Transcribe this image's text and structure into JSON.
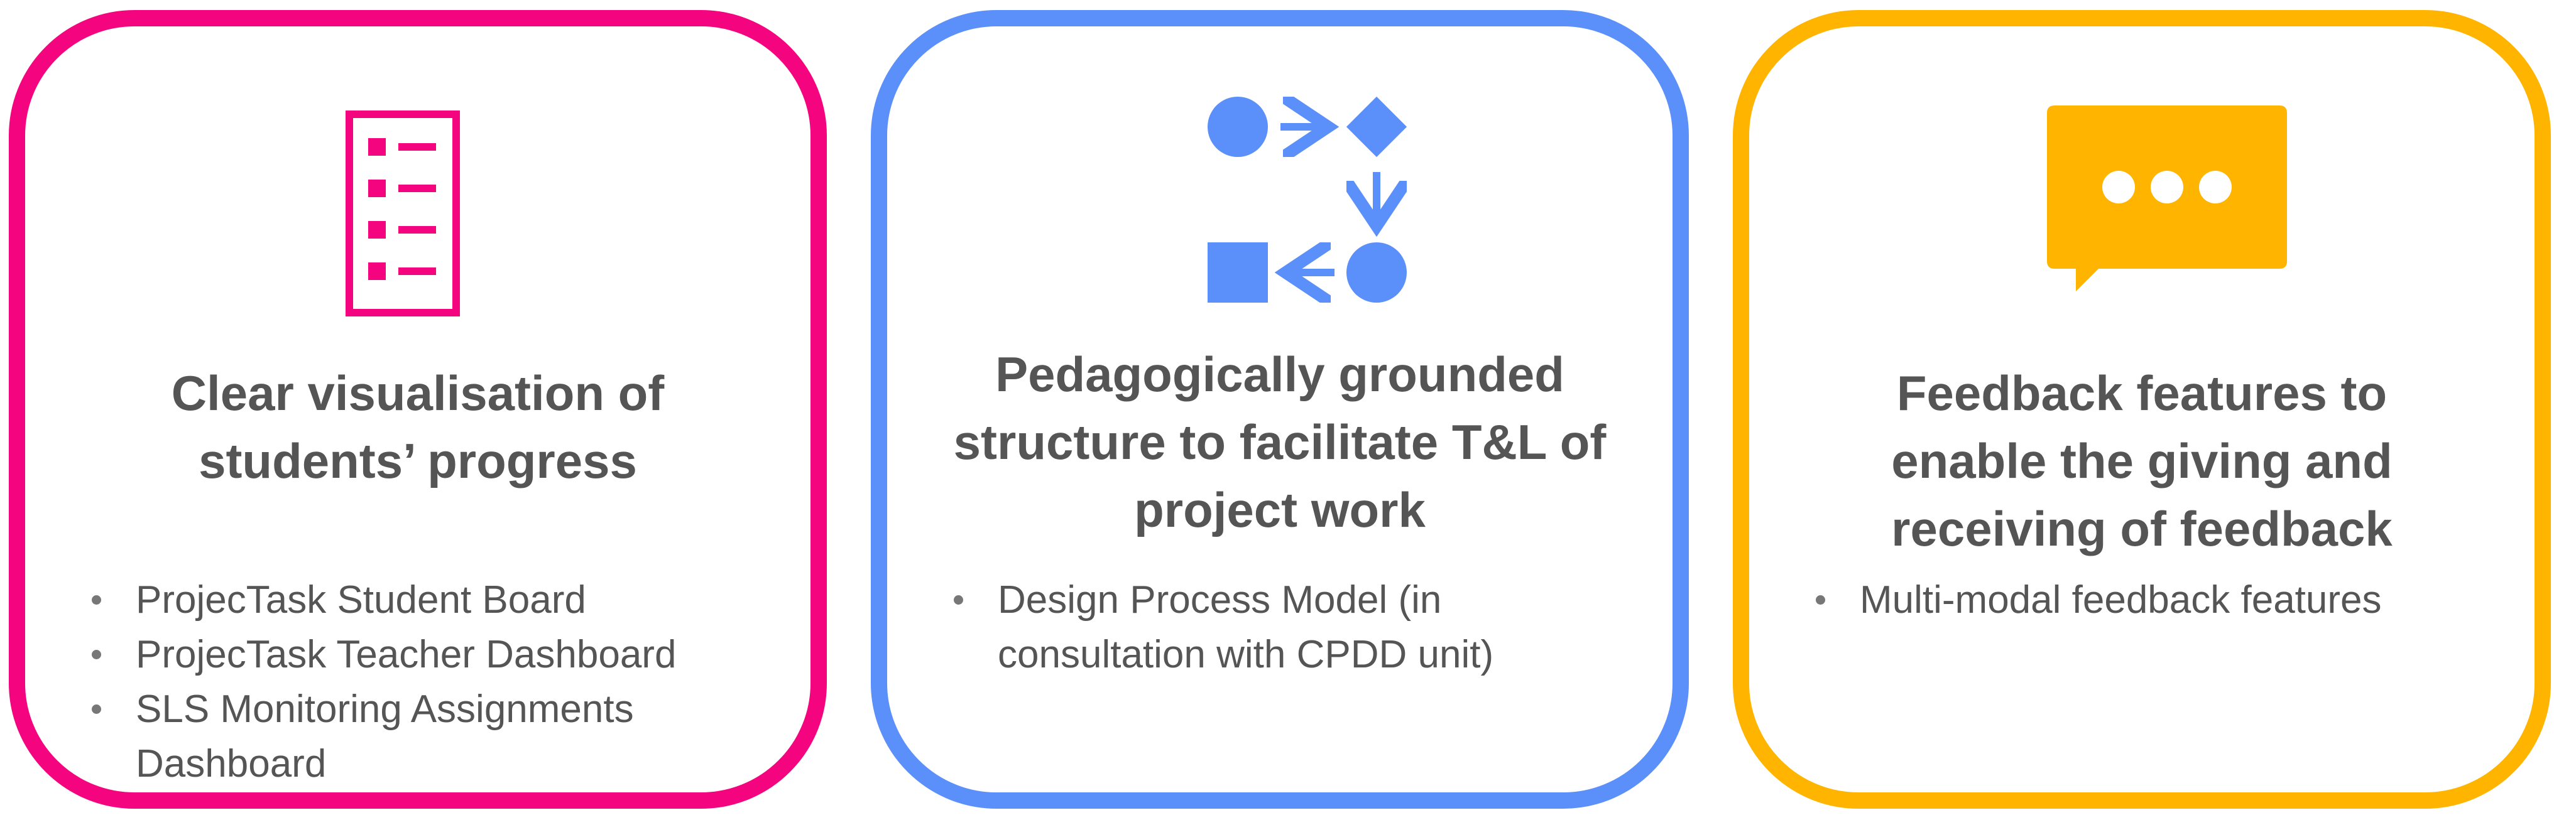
{
  "colors": {
    "pink": "#F5047F",
    "blue": "#5B8FF9",
    "amber": "#FFB400",
    "text": "#555555"
  },
  "cards": [
    {
      "icon": "checklist-icon",
      "title": "Clear visualisation of\nstudents’ progress",
      "bullets": [
        "ProjecTask Student Board",
        "ProjecTask Teacher Dashboard",
        "SLS Monitoring Assignments Dashboard"
      ]
    },
    {
      "icon": "process-flow-icon",
      "title": "Pedagogically grounded\nstructure to facilitate T&L of\nproject work",
      "bullets": [
        "Design Process Model (in consultation with CPDD unit)"
      ]
    },
    {
      "icon": "speech-bubble-icon",
      "title": "Feedback features to\nenable the giving and\nreceiving of feedback",
      "bullets": [
        "Multi-modal feedback features"
      ]
    }
  ]
}
